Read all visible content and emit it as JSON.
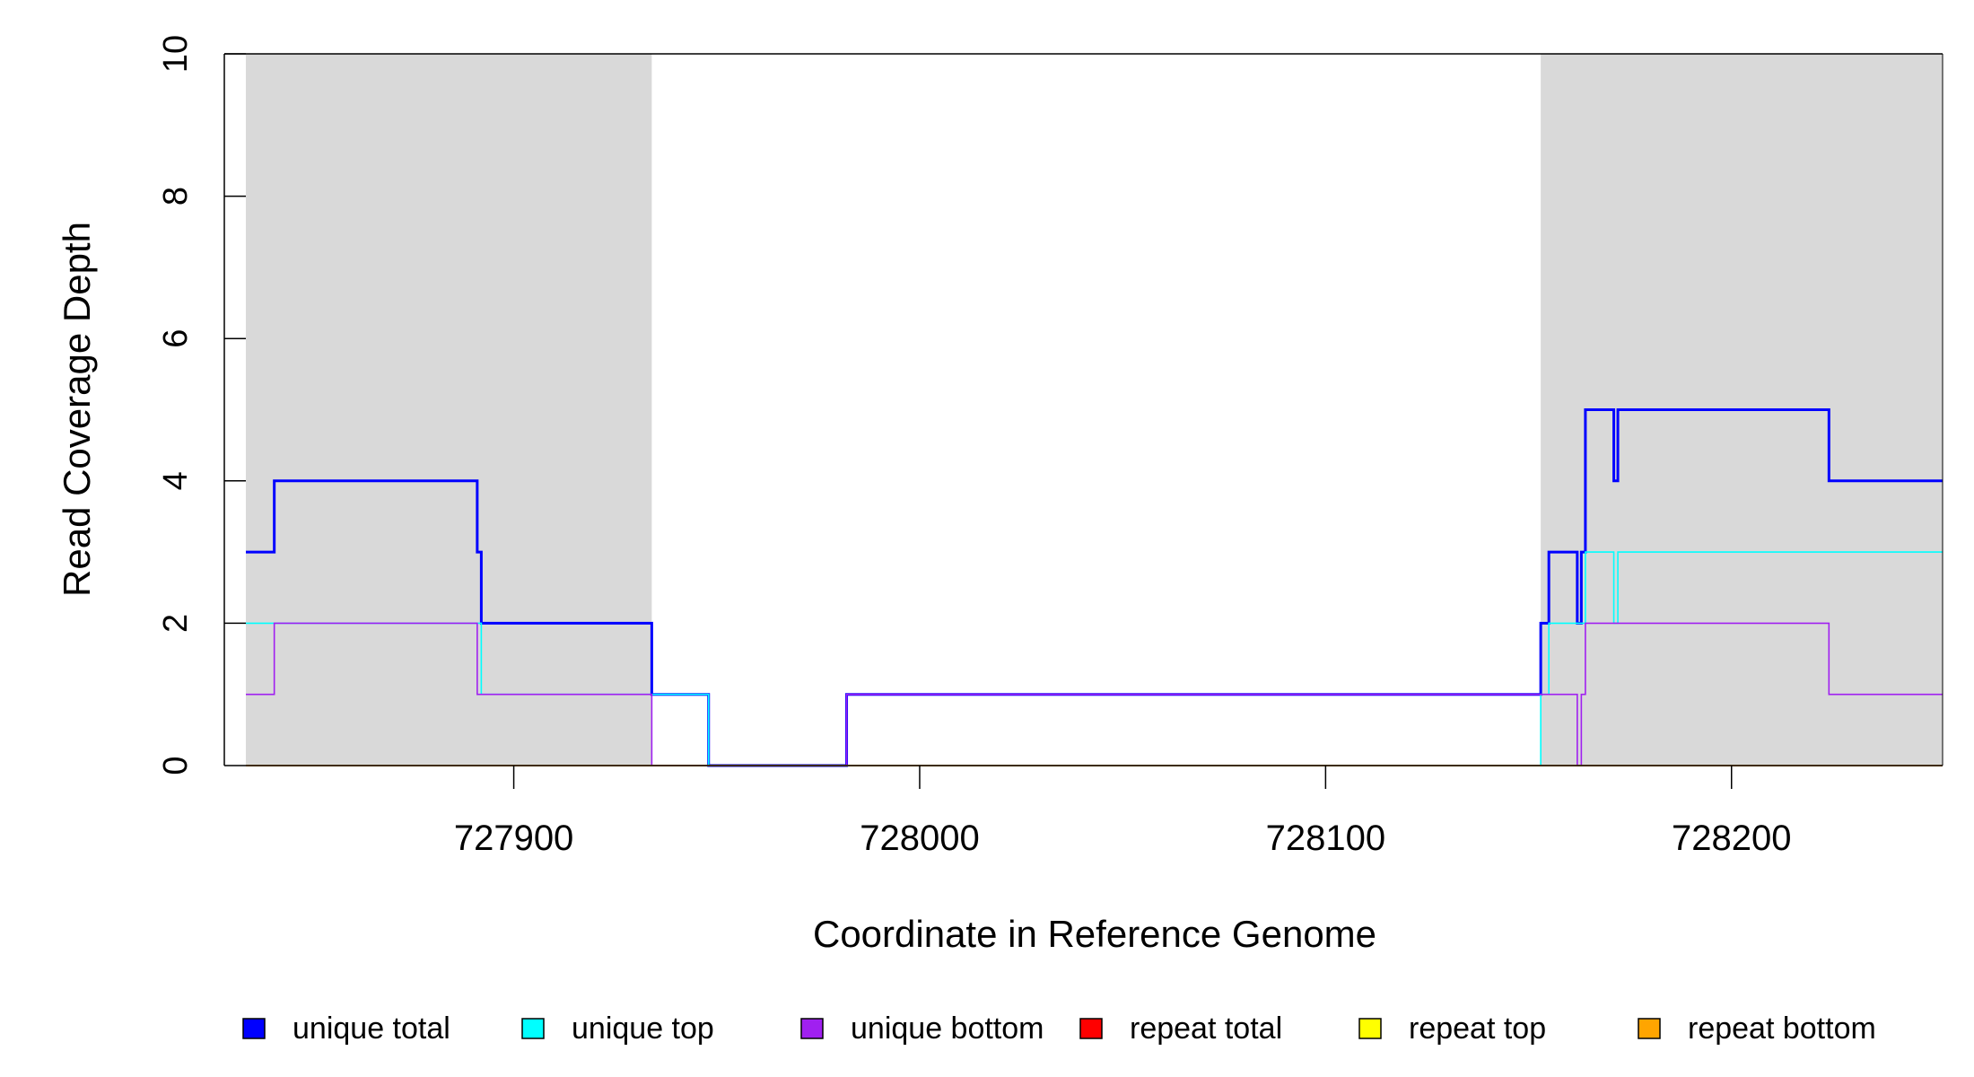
{
  "chart_data": {
    "type": "line",
    "step": true,
    "title": "",
    "xlabel": "Coordinate in Reference Genome",
    "ylabel": "Read Coverage Depth",
    "xlim": [
      727834,
      728252
    ],
    "ylim": [
      0,
      10
    ],
    "xticks": [
      727900,
      728000,
      728100,
      728200
    ],
    "xtick_labels": [
      "727900",
      "728000",
      "728100",
      "728200"
    ],
    "yticks": [
      0,
      2,
      4,
      6,
      8,
      10
    ],
    "ytick_labels": [
      "0",
      "2",
      "4",
      "6",
      "8",
      "10"
    ],
    "shaded_regions": [
      [
        727834,
        727934
      ],
      [
        728153,
        728252
      ]
    ],
    "shade_color": "#d9d9d9",
    "legend_position": "bottom",
    "series": [
      {
        "name": "unique total",
        "color": "#0000ff",
        "x": [
          727834,
          727841,
          727891,
          727892,
          727934,
          727948,
          727982,
          728153,
          728155,
          728162,
          728163,
          728164,
          728171,
          728172,
          728224,
          728252
        ],
        "y": [
          3,
          4,
          3,
          2,
          1,
          0,
          1,
          2,
          3,
          2,
          3,
          5,
          4,
          5,
          4,
          4
        ]
      },
      {
        "name": "unique top",
        "color": "#00ffff",
        "x": [
          727834,
          727892,
          727948,
          728153,
          728155,
          728164,
          728171,
          728172,
          728252
        ],
        "y": [
          2,
          1,
          0,
          1,
          2,
          3,
          2,
          3,
          3
        ]
      },
      {
        "name": "unique bottom",
        "color": "#a020f0",
        "x": [
          727834,
          727841,
          727891,
          727934,
          727982,
          728162,
          728163,
          728164,
          728224,
          728252
        ],
        "y": [
          1,
          2,
          1,
          0,
          1,
          0,
          1,
          2,
          1,
          1
        ]
      },
      {
        "name": "repeat total",
        "color": "#ff0000",
        "x": [
          727834,
          728252
        ],
        "y": [
          0,
          0
        ]
      },
      {
        "name": "repeat top",
        "color": "#ffff00",
        "x": [
          727834,
          728252
        ],
        "y": [
          0,
          0
        ]
      },
      {
        "name": "repeat bottom",
        "color": "#ffa500",
        "x": [
          727834,
          728252
        ],
        "y": [
          0,
          0
        ]
      }
    ]
  }
}
